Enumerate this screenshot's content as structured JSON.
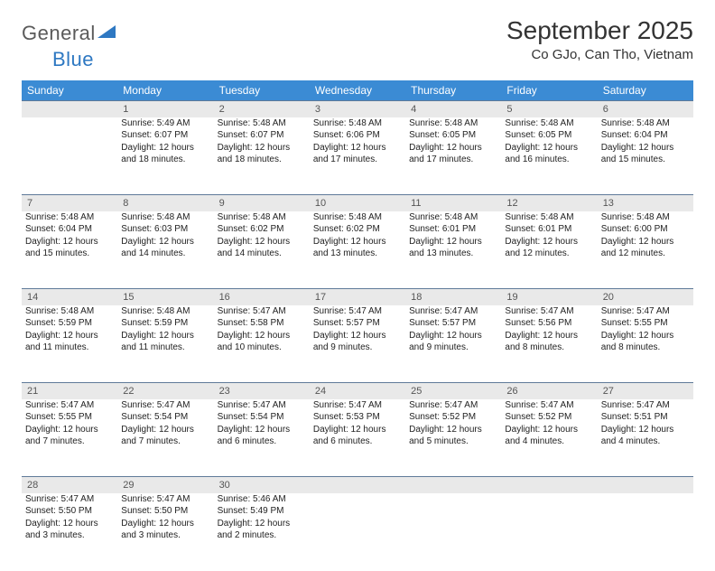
{
  "logo": {
    "text_general": "General",
    "text_blue": "Blue"
  },
  "header": {
    "month_title": "September 2025",
    "location": "Co GJo, Can Tho, Vietnam"
  },
  "colors": {
    "header_row_bg": "#3b8bd4",
    "header_row_text": "#ffffff",
    "daynum_bg": "#e9e9e9",
    "daynum_border": "#5f7a99",
    "logo_blue": "#2e78c2"
  },
  "dow": [
    "Sunday",
    "Monday",
    "Tuesday",
    "Wednesday",
    "Thursday",
    "Friday",
    "Saturday"
  ],
  "first_day_index": 1,
  "days": [
    {
      "n": 1,
      "sunrise": "5:49 AM",
      "sunset": "6:07 PM",
      "daylight": "12 hours and 18 minutes."
    },
    {
      "n": 2,
      "sunrise": "5:48 AM",
      "sunset": "6:07 PM",
      "daylight": "12 hours and 18 minutes."
    },
    {
      "n": 3,
      "sunrise": "5:48 AM",
      "sunset": "6:06 PM",
      "daylight": "12 hours and 17 minutes."
    },
    {
      "n": 4,
      "sunrise": "5:48 AM",
      "sunset": "6:05 PM",
      "daylight": "12 hours and 17 minutes."
    },
    {
      "n": 5,
      "sunrise": "5:48 AM",
      "sunset": "6:05 PM",
      "daylight": "12 hours and 16 minutes."
    },
    {
      "n": 6,
      "sunrise": "5:48 AM",
      "sunset": "6:04 PM",
      "daylight": "12 hours and 15 minutes."
    },
    {
      "n": 7,
      "sunrise": "5:48 AM",
      "sunset": "6:04 PM",
      "daylight": "12 hours and 15 minutes."
    },
    {
      "n": 8,
      "sunrise": "5:48 AM",
      "sunset": "6:03 PM",
      "daylight": "12 hours and 14 minutes."
    },
    {
      "n": 9,
      "sunrise": "5:48 AM",
      "sunset": "6:02 PM",
      "daylight": "12 hours and 14 minutes."
    },
    {
      "n": 10,
      "sunrise": "5:48 AM",
      "sunset": "6:02 PM",
      "daylight": "12 hours and 13 minutes."
    },
    {
      "n": 11,
      "sunrise": "5:48 AM",
      "sunset": "6:01 PM",
      "daylight": "12 hours and 13 minutes."
    },
    {
      "n": 12,
      "sunrise": "5:48 AM",
      "sunset": "6:01 PM",
      "daylight": "12 hours and 12 minutes."
    },
    {
      "n": 13,
      "sunrise": "5:48 AM",
      "sunset": "6:00 PM",
      "daylight": "12 hours and 12 minutes."
    },
    {
      "n": 14,
      "sunrise": "5:48 AM",
      "sunset": "5:59 PM",
      "daylight": "12 hours and 11 minutes."
    },
    {
      "n": 15,
      "sunrise": "5:48 AM",
      "sunset": "5:59 PM",
      "daylight": "12 hours and 11 minutes."
    },
    {
      "n": 16,
      "sunrise": "5:47 AM",
      "sunset": "5:58 PM",
      "daylight": "12 hours and 10 minutes."
    },
    {
      "n": 17,
      "sunrise": "5:47 AM",
      "sunset": "5:57 PM",
      "daylight": "12 hours and 9 minutes."
    },
    {
      "n": 18,
      "sunrise": "5:47 AM",
      "sunset": "5:57 PM",
      "daylight": "12 hours and 9 minutes."
    },
    {
      "n": 19,
      "sunrise": "5:47 AM",
      "sunset": "5:56 PM",
      "daylight": "12 hours and 8 minutes."
    },
    {
      "n": 20,
      "sunrise": "5:47 AM",
      "sunset": "5:55 PM",
      "daylight": "12 hours and 8 minutes."
    },
    {
      "n": 21,
      "sunrise": "5:47 AM",
      "sunset": "5:55 PM",
      "daylight": "12 hours and 7 minutes."
    },
    {
      "n": 22,
      "sunrise": "5:47 AM",
      "sunset": "5:54 PM",
      "daylight": "12 hours and 7 minutes."
    },
    {
      "n": 23,
      "sunrise": "5:47 AM",
      "sunset": "5:54 PM",
      "daylight": "12 hours and 6 minutes."
    },
    {
      "n": 24,
      "sunrise": "5:47 AM",
      "sunset": "5:53 PM",
      "daylight": "12 hours and 6 minutes."
    },
    {
      "n": 25,
      "sunrise": "5:47 AM",
      "sunset": "5:52 PM",
      "daylight": "12 hours and 5 minutes."
    },
    {
      "n": 26,
      "sunrise": "5:47 AM",
      "sunset": "5:52 PM",
      "daylight": "12 hours and 4 minutes."
    },
    {
      "n": 27,
      "sunrise": "5:47 AM",
      "sunset": "5:51 PM",
      "daylight": "12 hours and 4 minutes."
    },
    {
      "n": 28,
      "sunrise": "5:47 AM",
      "sunset": "5:50 PM",
      "daylight": "12 hours and 3 minutes."
    },
    {
      "n": 29,
      "sunrise": "5:47 AM",
      "sunset": "5:50 PM",
      "daylight": "12 hours and 3 minutes."
    },
    {
      "n": 30,
      "sunrise": "5:46 AM",
      "sunset": "5:49 PM",
      "daylight": "12 hours and 2 minutes."
    }
  ],
  "labels": {
    "sunrise": "Sunrise:",
    "sunset": "Sunset:",
    "daylight": "Daylight:"
  }
}
